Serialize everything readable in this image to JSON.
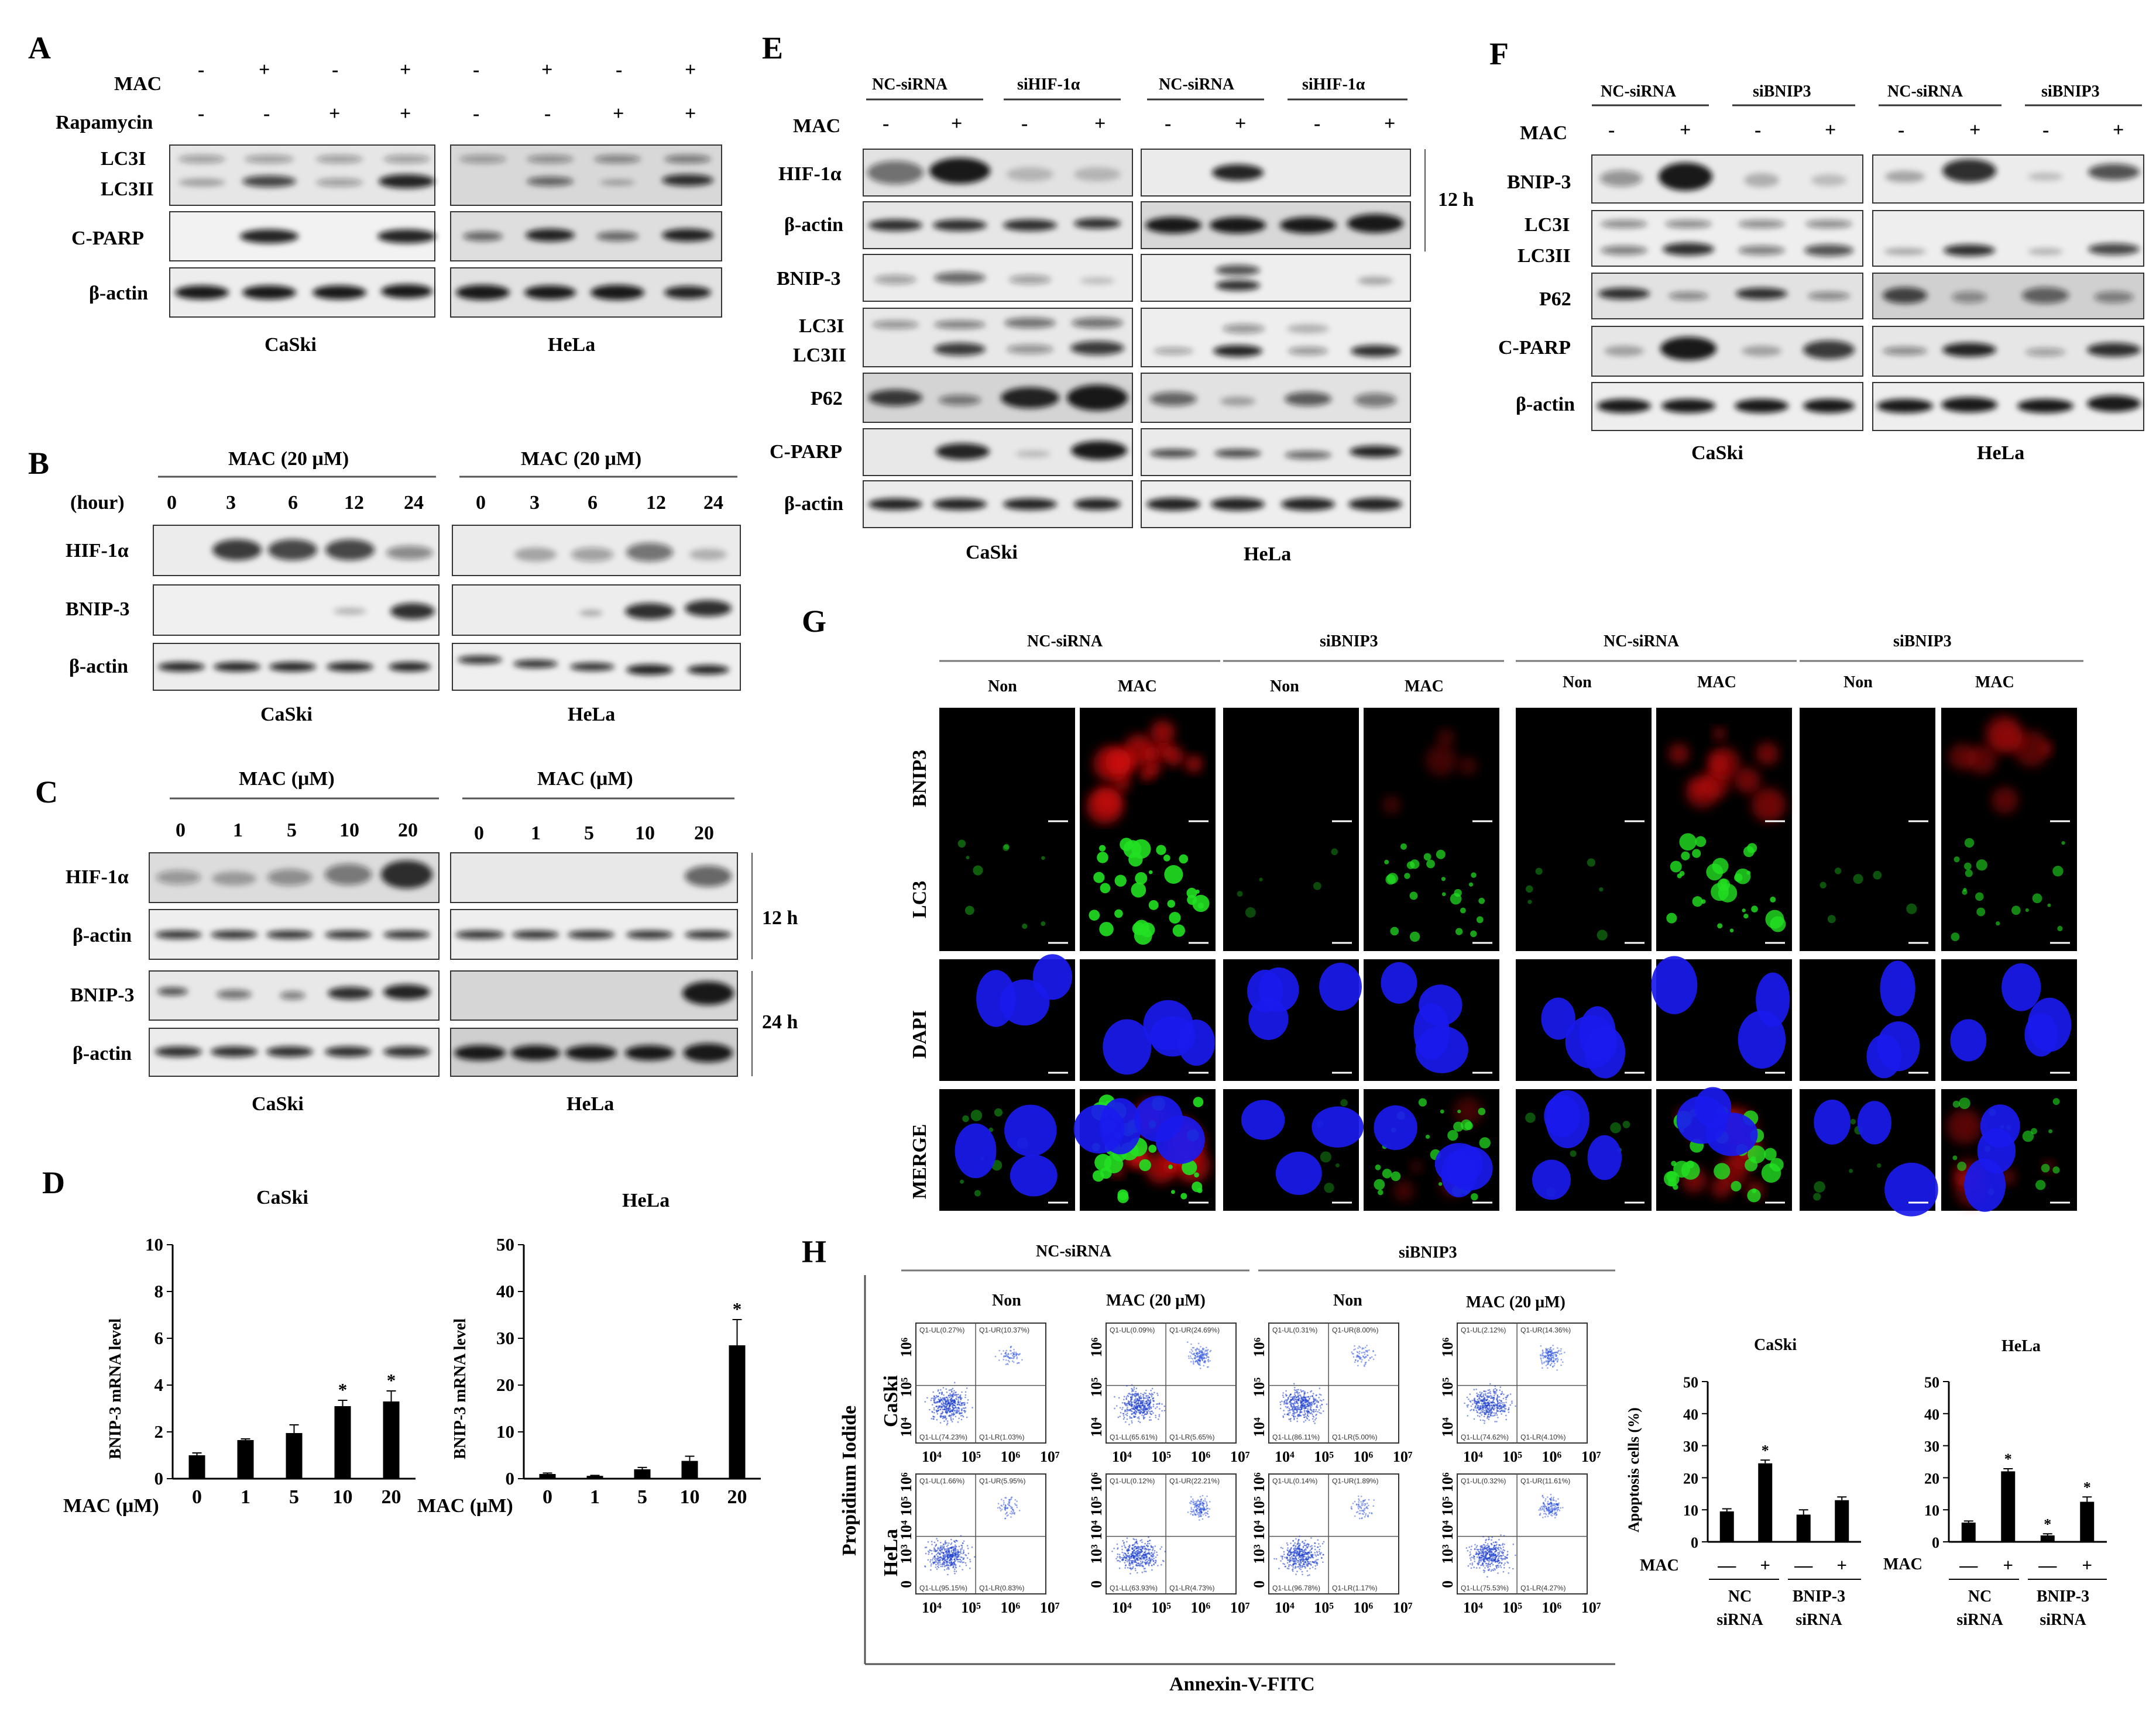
{
  "panels": {
    "A": "A",
    "B": "B",
    "C": "C",
    "D": "D",
    "E": "E",
    "F": "F",
    "G": "G",
    "H": "H"
  },
  "common": {
    "plus": "+",
    "minus": "-",
    "dash": "—",
    "star": "*",
    "twelve_h": "12 h",
    "twentyfour_h": "24 h",
    "caski": "CaSki",
    "hela": "HeLa",
    "mac": "MAC",
    "bactin": "β-actin",
    "hif": "HIF-1α",
    "bnip3": "BNIP-3",
    "lc3i": "LC3I",
    "lc3ii": "LC3II",
    "cparp": "C-PARP",
    "p62": "P62",
    "nc_sirna": "NC-siRNA",
    "sihif": "siHIF-1α",
    "sibnip3": "siBNIP3",
    "rapamycin": "Rapamycin",
    "hour": "(hour)",
    "mac20": "MAC (20 μM)",
    "macum": "MAC (μM)",
    "mac_axis": "MAC (μM)",
    "non": "Non",
    "ylabel_d": "BNIP-3 mRNA level",
    "ylabel_h": "Apoptosis cells (%)",
    "nc_row": "NC",
    "sirna_row": "siRNA",
    "bnip3_row": "BNIP-3",
    "lc3": "LC3",
    "dapi": "DAPI",
    "merge": "MERGE",
    "bnip3_g": "BNIP3",
    "pi": "Propidium Iodide",
    "annexin": "Annexin-V-FITC",
    "t4": "10⁴",
    "t5": "10⁵",
    "t6": "10⁶",
    "t7": "10⁷",
    "t3": "10³",
    "z": "0"
  },
  "panel_b": {
    "hours": [
      "0",
      "3",
      "6",
      "12",
      "24"
    ]
  },
  "panel_c": {
    "doses": [
      "0",
      "1",
      "5",
      "10",
      "20"
    ]
  },
  "panel_d": {
    "caski_ticks": [
      "10",
      "8",
      "6",
      "4",
      "2",
      "0"
    ],
    "hela_ticks": [
      "50",
      "40",
      "30",
      "20",
      "10",
      "0"
    ]
  },
  "panel_h": {
    "ticks": [
      "50",
      "40",
      "30",
      "20",
      "10",
      "0"
    ],
    "quadrants": [
      [
        "Q1-UL(0.27%)",
        "Q1-UR(10.37%)",
        "Q1-LL(74.23%)",
        "Q1-LR(1.03%)"
      ],
      [
        "Q1-UL(0.09%)",
        "Q1-UR(24.69%)",
        "Q1-LL(65.61%)",
        "Q1-LR(5.65%)"
      ],
      [
        "Q1-UL(0.31%)",
        "Q1-UR(8.00%)",
        "Q1-LL(86.11%)",
        "Q1-LR(5.00%)"
      ],
      [
        "Q1-UL(2.12%)",
        "Q1-UR(14.36%)",
        "Q1-LL(74.62%)",
        "Q1-LR(4.10%)"
      ],
      [
        "Q1-UL(1.66%)",
        "Q1-UR(5.95%)",
        "Q1-LL(95.15%)",
        "Q1-LR(0.83%)"
      ],
      [
        "Q1-UL(0.12%)",
        "Q1-UR(22.21%)",
        "Q1-LL(63.93%)",
        "Q1-LR(4.73%)"
      ],
      [
        "Q1-UL(0.14%)",
        "Q1-UR(1.89%)",
        "Q1-LL(96.78%)",
        "Q1-LR(1.17%)"
      ],
      [
        "Q1-UL(0.32%)",
        "Q1-UR(11.61%)",
        "Q1-LL(75.53%)",
        "Q1-LR(4.27%)"
      ]
    ]
  },
  "chart_data": [
    {
      "type": "bar",
      "title": "CaSki",
      "ylabel": "BNIP-3 mRNA level",
      "xlabel": "MAC (μM)",
      "categories": [
        "0",
        "1",
        "5",
        "10",
        "20"
      ],
      "values": [
        1.0,
        1.65,
        1.95,
        3.1,
        3.3
      ],
      "errors": [
        0.1,
        0.05,
        0.35,
        0.25,
        0.45
      ],
      "significant": [
        false,
        false,
        false,
        true,
        true
      ],
      "ylim": [
        0,
        10
      ]
    },
    {
      "type": "bar",
      "title": "HeLa",
      "ylabel": "BNIP-3 mRNA level",
      "xlabel": "MAC (μM)",
      "categories": [
        "0",
        "1",
        "5",
        "10",
        "20"
      ],
      "values": [
        1.0,
        0.6,
        2.0,
        3.8,
        28.5
      ],
      "errors": [
        0.2,
        0.1,
        0.4,
        1.0,
        5.5
      ],
      "significant": [
        false,
        false,
        false,
        false,
        true
      ],
      "ylim": [
        0,
        50
      ]
    },
    {
      "type": "bar",
      "title": "CaSki",
      "ylabel": "Apoptosis cells (%)",
      "categories": [
        "NC siRNA −",
        "NC siRNA +",
        "BNIP-3 siRNA −",
        "BNIP-3 siRNA +"
      ],
      "values": [
        9.5,
        24.5,
        8.5,
        13.0
      ],
      "errors": [
        0.8,
        1.0,
        1.5,
        1.0
      ],
      "significant": [
        false,
        true,
        false,
        false
      ],
      "ylim": [
        0,
        50
      ]
    },
    {
      "type": "bar",
      "title": "HeLa",
      "ylabel": "Apoptosis cells (%)",
      "categories": [
        "NC siRNA −",
        "NC siRNA +",
        "BNIP-3 siRNA −",
        "BNIP-3 siRNA +"
      ],
      "values": [
        6.0,
        22.0,
        2.0,
        12.5
      ],
      "errors": [
        0.5,
        0.8,
        0.5,
        1.5
      ],
      "significant": [
        false,
        true,
        true,
        true
      ],
      "ylim": [
        0,
        50
      ]
    }
  ]
}
